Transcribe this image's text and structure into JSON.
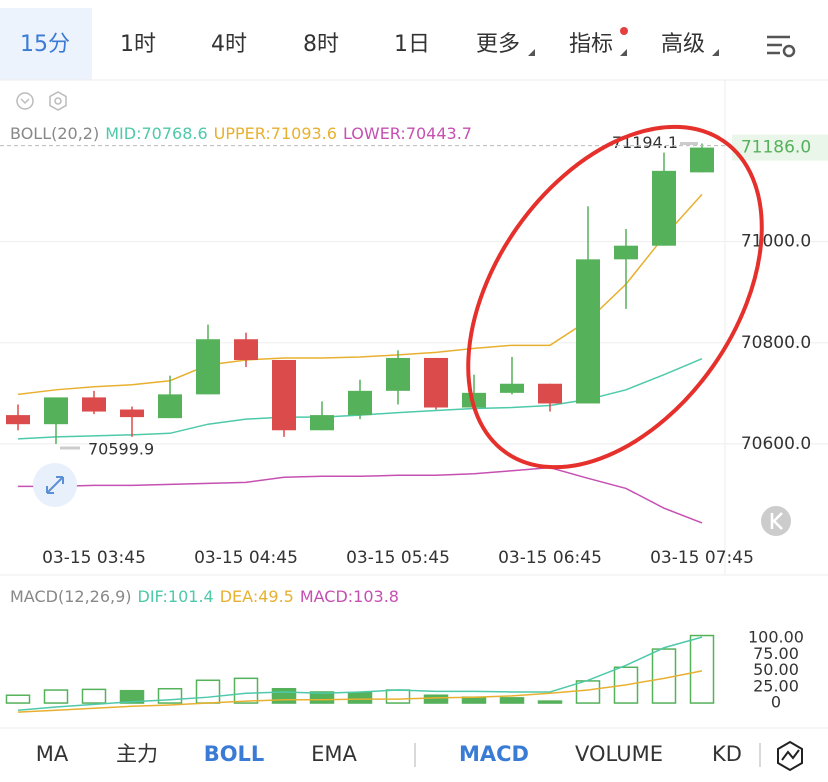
{
  "tabs": [
    "15分",
    "1时",
    "4时",
    "8时",
    "1日",
    "更多",
    "指标",
    "高级"
  ],
  "chart_data": [
    {
      "type": "candlestick",
      "indicator": "BOLL(20,2)",
      "categories": [
        null,
        null,
        "03-15 03:45",
        null,
        null,
        null,
        "03-15 04:45",
        null,
        null,
        null,
        "03-15 05:45",
        null,
        null,
        null,
        "03-15 06:45",
        null,
        null,
        null,
        "03-15 07:45"
      ],
      "open": [
        70657,
        70639,
        70692,
        70668,
        70651,
        70698,
        70807,
        70766,
        70627,
        70657,
        70705,
        70770,
        70672,
        70701,
        70719,
        70680,
        70965,
        70992,
        71137
      ],
      "high": [
        70678,
        70692,
        70705,
        70674,
        70735,
        70836,
        70820,
        70766,
        70684,
        70727,
        70785,
        70770,
        70737,
        70772,
        70719,
        71070,
        71025,
        71176,
        71194.1
      ],
      "low": [
        70627,
        70599.9,
        70659,
        70614,
        70651,
        70698,
        70752,
        70614,
        70627,
        70649,
        70678,
        70668,
        70668,
        70698,
        70664,
        70680,
        70867,
        70992,
        71137
      ],
      "close": [
        70639,
        70692,
        70664,
        70653,
        70698,
        70807,
        70766,
        70627,
        70657,
        70705,
        70770,
        70672,
        70701,
        70719,
        70680,
        70965,
        70992,
        71140,
        71186.0
      ],
      "last_price_label": "71186.0",
      "up_color": "#55b15a",
      "down_color": "#dc4b4b",
      "series": [
        {
          "name": "MID:70768.6",
          "color": "#4ec9a9",
          "values": [
            70610,
            70614,
            70616,
            70618,
            70621,
            70639,
            70649,
            70653,
            70653,
            70657,
            70662,
            70666,
            70670,
            70672,
            70676,
            70688,
            70707,
            70737,
            70768.6
          ]
        },
        {
          "name": "UPPER:71093.6",
          "color": "#e8b030",
          "values": [
            70698,
            70707,
            70713,
            70717,
            70725,
            70756,
            70766,
            70770,
            70770,
            70772,
            70776,
            70781,
            70789,
            70795,
            70795,
            70844,
            70916,
            71010,
            71093.6
          ]
        },
        {
          "name": "LOWER:70443.7",
          "color": "#c650b2",
          "values": [
            70516,
            70516,
            70518,
            70518,
            70520,
            70522,
            70524,
            70534,
            70536,
            70536,
            70538,
            70538,
            70541,
            70547,
            70553,
            70532,
            70512,
            70473,
            70443.7
          ]
        }
      ],
      "ylim": [
        70410,
        71290
      ],
      "yticks": [
        {
          "value": 71000,
          "label": "71000.0"
        },
        {
          "value": 70800,
          "label": "70800.0"
        },
        {
          "value": 70600,
          "label": "70600.0"
        }
      ],
      "grid": true
    },
    {
      "type": "macd",
      "indicator": "MACD(12,26,9)",
      "series": [
        {
          "name": "DIF:101.4",
          "color": "#4ec9a9",
          "values": [
            -11,
            -6,
            -2,
            2,
            5,
            9,
            15,
            17,
            15,
            17,
            20,
            18,
            18,
            17,
            17,
            35,
            58,
            85,
            101.4
          ]
        },
        {
          "name": "DEA:49.5",
          "color": "#e8b030",
          "values": [
            -14,
            -11,
            -8,
            -5,
            -3,
            0,
            3,
            5,
            5,
            6,
            6,
            8,
            9,
            11,
            15,
            20,
            28,
            38,
            49.5
          ]
        },
        {
          "name": "MACD:103.8",
          "color": "#55b15a",
          "values": [
            12,
            20,
            21,
            19,
            22,
            35,
            38,
            22,
            17,
            16,
            20,
            12,
            9,
            8,
            3,
            34,
            55,
            83,
            103.8
          ]
        }
      ],
      "legend_colors": [
        "#4ec9a9",
        "#e8b030",
        "#c650b2"
      ],
      "ylim": [
        -23,
        120
      ],
      "yticks": [
        {
          "value": 100,
          "label": "100.00"
        },
        {
          "value": 75,
          "label": "75.00"
        },
        {
          "value": 50,
          "label": "50.00"
        },
        {
          "value": 25,
          "label": "25.00"
        },
        0
      ]
    }
  ],
  "indicator_tabs": [
    "MA",
    "主力",
    "BOLL",
    "EMA",
    "MACD",
    "VOLUME",
    "KD"
  ]
}
